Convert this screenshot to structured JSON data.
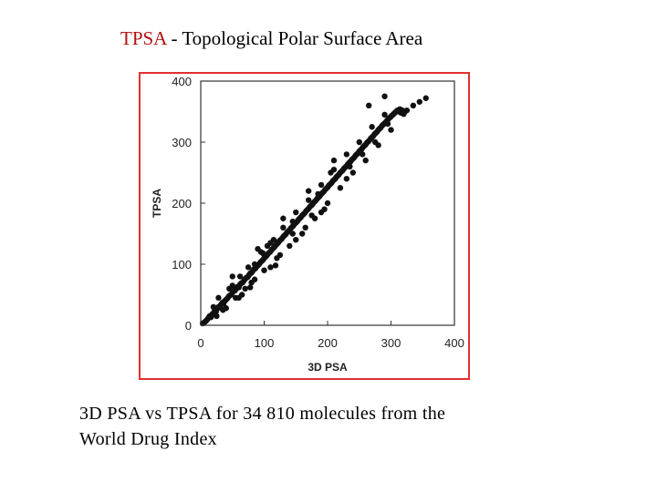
{
  "slide": {
    "title_acronym": "TPSA",
    "title_rest": " - Topological Polar Surface Area",
    "caption_line1": "3D PSA vs TPSA for 34 810 molecules from the",
    "caption_line2": "World Drug Index"
  },
  "chart_data": {
    "type": "scatter",
    "title": "",
    "xlabel": "3D PSA",
    "ylabel": "TPSA",
    "xlim": [
      0,
      400
    ],
    "ylim": [
      0,
      400
    ],
    "xticks": [
      0,
      100,
      200,
      300,
      400
    ],
    "yticks": [
      0,
      100,
      200,
      300,
      400
    ],
    "grid": false,
    "series": [
      {
        "values_xy": [
          [
            3,
            3
          ],
          [
            6,
            5
          ],
          [
            8,
            7
          ],
          [
            10,
            9
          ],
          [
            12,
            12
          ],
          [
            14,
            15
          ],
          [
            16,
            13
          ],
          [
            18,
            18
          ],
          [
            20,
            20
          ],
          [
            22,
            24
          ],
          [
            24,
            22
          ],
          [
            26,
            27
          ],
          [
            28,
            30
          ],
          [
            30,
            29
          ],
          [
            32,
            34
          ],
          [
            34,
            37
          ],
          [
            36,
            35
          ],
          [
            38,
            40
          ],
          [
            40,
            42
          ],
          [
            42,
            44
          ],
          [
            44,
            47
          ],
          [
            46,
            49
          ],
          [
            48,
            50
          ],
          [
            50,
            54
          ],
          [
            52,
            56
          ],
          [
            54,
            57
          ],
          [
            56,
            60
          ],
          [
            58,
            63
          ],
          [
            60,
            62
          ],
          [
            62,
            67
          ],
          [
            64,
            69
          ],
          [
            66,
            70
          ],
          [
            68,
            73
          ],
          [
            70,
            76
          ],
          [
            72,
            78
          ],
          [
            74,
            79
          ],
          [
            76,
            82
          ],
          [
            78,
            85
          ],
          [
            80,
            86
          ],
          [
            82,
            89
          ],
          [
            84,
            92
          ],
          [
            86,
            93
          ],
          [
            88,
            96
          ],
          [
            90,
            98
          ],
          [
            92,
            100
          ],
          [
            94,
            103
          ],
          [
            96,
            105
          ],
          [
            98,
            107
          ],
          [
            100,
            110
          ],
          [
            102,
            112
          ],
          [
            104,
            114
          ],
          [
            106,
            117
          ],
          [
            108,
            119
          ],
          [
            110,
            121
          ],
          [
            112,
            124
          ],
          [
            114,
            126
          ],
          [
            116,
            128
          ],
          [
            118,
            131
          ],
          [
            120,
            133
          ],
          [
            122,
            135
          ],
          [
            124,
            138
          ],
          [
            126,
            140
          ],
          [
            128,
            142
          ],
          [
            130,
            145
          ],
          [
            132,
            147
          ],
          [
            134,
            149
          ],
          [
            136,
            152
          ],
          [
            138,
            154
          ],
          [
            140,
            156
          ],
          [
            142,
            159
          ],
          [
            144,
            161
          ],
          [
            146,
            163
          ],
          [
            148,
            166
          ],
          [
            150,
            168
          ],
          [
            152,
            170
          ],
          [
            154,
            173
          ],
          [
            156,
            175
          ],
          [
            158,
            177
          ],
          [
            160,
            180
          ],
          [
            162,
            182
          ],
          [
            164,
            184
          ],
          [
            166,
            187
          ],
          [
            168,
            189
          ],
          [
            170,
            191
          ],
          [
            172,
            194
          ],
          [
            174,
            196
          ],
          [
            176,
            198
          ],
          [
            178,
            201
          ],
          [
            180,
            203
          ],
          [
            182,
            205
          ],
          [
            184,
            208
          ],
          [
            186,
            210
          ],
          [
            188,
            212
          ],
          [
            190,
            215
          ],
          [
            192,
            217
          ],
          [
            194,
            219
          ],
          [
            196,
            222
          ],
          [
            198,
            224
          ],
          [
            200,
            226
          ],
          [
            202,
            229
          ],
          [
            204,
            231
          ],
          [
            206,
            233
          ],
          [
            208,
            236
          ],
          [
            210,
            238
          ],
          [
            212,
            240
          ],
          [
            214,
            243
          ],
          [
            216,
            245
          ],
          [
            218,
            247
          ],
          [
            220,
            250
          ],
          [
            222,
            252
          ],
          [
            224,
            254
          ],
          [
            226,
            257
          ],
          [
            228,
            259
          ],
          [
            230,
            261
          ],
          [
            232,
            264
          ],
          [
            234,
            266
          ],
          [
            236,
            268
          ],
          [
            238,
            271
          ],
          [
            240,
            273
          ],
          [
            242,
            275
          ],
          [
            244,
            278
          ],
          [
            246,
            280
          ],
          [
            248,
            282
          ],
          [
            250,
            285
          ],
          [
            252,
            287
          ],
          [
            254,
            289
          ],
          [
            256,
            292
          ],
          [
            258,
            294
          ],
          [
            260,
            296
          ],
          [
            262,
            299
          ],
          [
            264,
            301
          ],
          [
            266,
            303
          ],
          [
            268,
            306
          ],
          [
            270,
            308
          ],
          [
            272,
            310
          ],
          [
            274,
            313
          ],
          [
            276,
            315
          ],
          [
            278,
            317
          ],
          [
            280,
            320
          ],
          [
            282,
            322
          ],
          [
            284,
            324
          ],
          [
            286,
            327
          ],
          [
            288,
            329
          ],
          [
            290,
            331
          ],
          [
            292,
            333
          ],
          [
            294,
            336
          ],
          [
            296,
            338
          ],
          [
            298,
            340
          ],
          [
            300,
            342
          ],
          [
            302,
            344
          ],
          [
            304,
            346
          ],
          [
            306,
            348
          ],
          [
            308,
            350
          ],
          [
            310,
            352
          ],
          [
            312,
            350
          ],
          [
            314,
            354
          ],
          [
            316,
            348
          ],
          [
            318,
            352
          ],
          [
            320,
            346
          ],
          [
            322,
            350
          ],
          [
            20,
            30
          ],
          [
            35,
            25
          ],
          [
            50,
            65
          ],
          [
            60,
            45
          ],
          [
            75,
            95
          ],
          [
            80,
            70
          ],
          [
            95,
            120
          ],
          [
            100,
            90
          ],
          [
            110,
            135
          ],
          [
            120,
            110
          ],
          [
            130,
            160
          ],
          [
            140,
            130
          ],
          [
            150,
            185
          ],
          [
            160,
            150
          ],
          [
            170,
            205
          ],
          [
            180,
            175
          ],
          [
            190,
            230
          ],
          [
            200,
            200
          ],
          [
            210,
            255
          ],
          [
            220,
            225
          ],
          [
            230,
            280
          ],
          [
            240,
            250
          ],
          [
            250,
            300
          ],
          [
            260,
            270
          ],
          [
            270,
            325
          ],
          [
            280,
            295
          ],
          [
            290,
            345
          ],
          [
            300,
            320
          ],
          [
            265,
            360
          ],
          [
            290,
            375
          ],
          [
            50,
            80
          ],
          [
            70,
            60
          ],
          [
            90,
            125
          ],
          [
            110,
            95
          ],
          [
            130,
            175
          ],
          [
            150,
            140
          ],
          [
            170,
            220
          ],
          [
            190,
            185
          ],
          [
            210,
            270
          ],
          [
            230,
            240
          ],
          [
            55,
            45
          ],
          [
            85,
            100
          ],
          [
            115,
            140
          ],
          [
            145,
            150
          ],
          [
            175,
            180
          ],
          [
            205,
            250
          ],
          [
            235,
            260
          ],
          [
            255,
            280
          ],
          [
            275,
            300
          ],
          [
            295,
            330
          ],
          [
            25,
            15
          ],
          [
            45,
            60
          ],
          [
            65,
            50
          ],
          [
            85,
            75
          ],
          [
            105,
            130
          ],
          [
            125,
            115
          ],
          [
            145,
            170
          ],
          [
            165,
            160
          ],
          [
            185,
            215
          ],
          [
            195,
            190
          ],
          [
            355,
            372
          ],
          [
            345,
            366
          ],
          [
            335,
            360
          ],
          [
            325,
            352
          ],
          [
            28,
            45
          ],
          [
            40,
            28
          ],
          [
            62,
            80
          ],
          [
            78,
            62
          ],
          [
            98,
            118
          ],
          [
            118,
            98
          ]
        ]
      }
    ]
  }
}
